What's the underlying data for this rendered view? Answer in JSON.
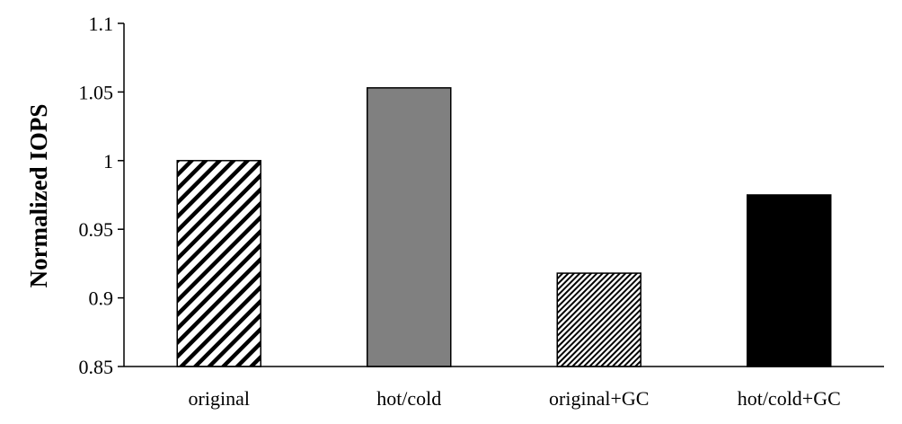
{
  "chart_data": {
    "type": "bar",
    "title": "",
    "xlabel": "",
    "ylabel": "Normalized IOPS",
    "ylim": [
      0.85,
      1.1
    ],
    "yticks": [
      0.85,
      0.9,
      0.95,
      1,
      1.05,
      1.1
    ],
    "ytick_labels": [
      "0.85",
      "0.9",
      "0.95",
      "1",
      "1.05",
      "1.1"
    ],
    "categories": [
      "original",
      "hot/cold",
      "original+GC",
      "hot/cold+GC"
    ],
    "values": [
      1.0,
      1.053,
      0.918,
      0.975
    ],
    "fills": [
      "wide-diagonal-hatch",
      "solid-gray",
      "dense-diagonal-hatch",
      "solid-black"
    ],
    "colors": {
      "gray": "#808080",
      "black": "#000000",
      "outline": "#000000"
    },
    "grid": false,
    "legend": "none"
  }
}
